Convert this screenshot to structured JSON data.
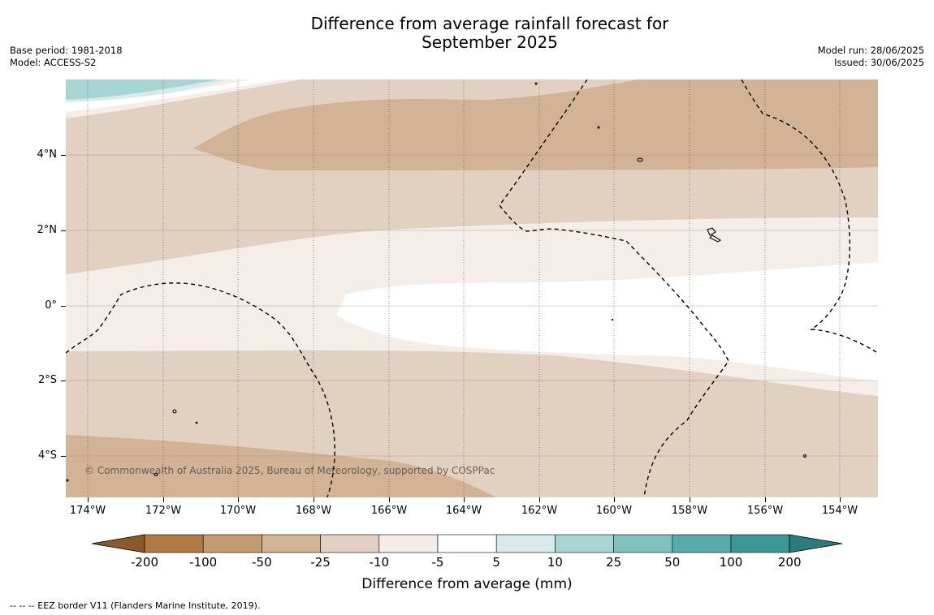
{
  "title": {
    "line1": "Difference from average rainfall forecast for",
    "line2": "September 2025"
  },
  "meta": {
    "base_period": "Base period: 1981-2018",
    "model": "Model: ACCESS-S2",
    "model_run": "Model run: 28/06/2025",
    "issued": "Issued: 30/06/2025"
  },
  "map": {
    "y_labels": [
      "4°N",
      "2°N",
      "0°",
      "2°S",
      "4°S"
    ],
    "x_labels": [
      "174°W",
      "172°W",
      "170°W",
      "168°W",
      "166°W",
      "164°W",
      "162°W",
      "160°W",
      "158°W",
      "156°W",
      "154°W"
    ],
    "copyright": "© Commonwealth of Australia 2025, Bureau of Meteorology, supported by COSPPac"
  },
  "legend": {
    "title": "Difference from average (mm)",
    "labels": [
      "-200",
      "-100",
      "-50",
      "-25",
      "-10",
      "-5",
      "5",
      "10",
      "25",
      "50",
      "100",
      "200"
    ],
    "colors": [
      "#8b5a2b",
      "#b07a45",
      "#c49a72",
      "#d2b395",
      "#e2d0c0",
      "#f4ede8",
      "#ffffff",
      "#d6ebea",
      "#a8d5d3",
      "#80c1bf",
      "#59aba9",
      "#3a9995",
      "#2a7d7a"
    ]
  },
  "footnote": "--  --  -- EEZ border V11 (Flanders Marine Institute, 2019)."
}
